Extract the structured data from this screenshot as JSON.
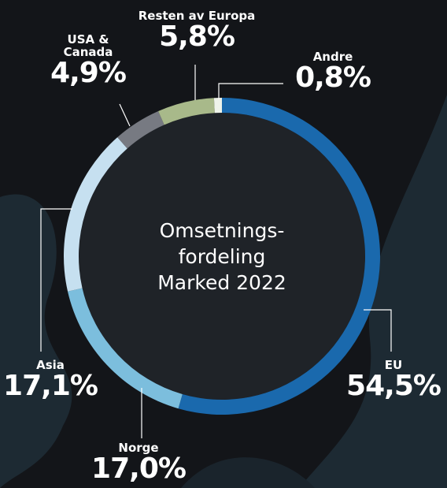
{
  "chart_data": {
    "type": "donut",
    "title": [
      "Omsetnings-",
      "fordeling",
      "Marked 2022"
    ],
    "categories": [
      "EU",
      "Norge",
      "Asia",
      "USA & Canada",
      "Resten av Europa",
      "Andre"
    ],
    "values": [
      54.5,
      17.0,
      17.1,
      4.9,
      5.8,
      0.8
    ],
    "value_labels": [
      "54,5%",
      "17,0%",
      "17,1%",
      "4,9%",
      "5,8%",
      "0,8%"
    ],
    "colors": [
      "#1a69ad",
      "#7cbedd",
      "#c6e0f0",
      "#777a82",
      "#a8b98a",
      "#eef3ea"
    ]
  }
}
